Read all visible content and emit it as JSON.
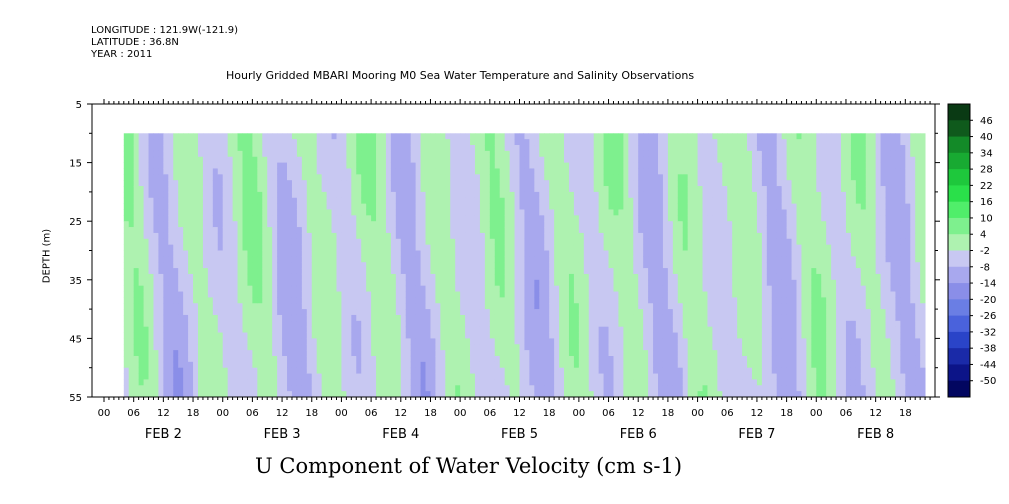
{
  "header": {
    "longitude": "LONGITUDE : 121.9W(-121.9)",
    "latitude": "LATITUDE : 36.8N",
    "year": "YEAR : 2011"
  },
  "chart_data": {
    "type": "heatmap",
    "title": "Hourly Gridded MBARI Mooring M0 Sea Water Temperature and Salinity Observations",
    "xlabel": "U Component of Water Velocity (cm s-1)",
    "ylabel": "DEPTH (m)",
    "y_ticks": [
      5,
      15,
      25,
      35,
      45,
      55
    ],
    "ylim": [
      55,
      5
    ],
    "depth_start": 10,
    "hour_ticks": [
      "00",
      "06",
      "12",
      "18",
      "00",
      "06",
      "12",
      "18",
      "00",
      "06",
      "12",
      "18",
      "00",
      "06",
      "12",
      "18",
      "00",
      "06",
      "12",
      "18",
      "00",
      "06",
      "12",
      "18",
      "00",
      "06",
      "12",
      "18"
    ],
    "day_labels": [
      "FEB  2",
      "FEB  3",
      "FEB  4",
      "FEB  5",
      "FEB  6",
      "FEB  7",
      "FEB  8"
    ],
    "colorbar_levels": [
      "46",
      "40",
      "34",
      "28",
      "22",
      "16",
      "10",
      "4",
      "-2",
      "-8",
      "-14",
      "-20",
      "-26",
      "-32",
      "-38",
      "-44",
      "-50"
    ],
    "colorbar_colors": [
      "#0a3a14",
      "#0f5a1c",
      "#138a28",
      "#18aa32",
      "#1ec83c",
      "#2ae04a",
      "#50ee6a",
      "#7ef08e",
      "#aef2b0",
      "#c8c8f2",
      "#a8a8ee",
      "#8a8ee8",
      "#6a7ee4",
      "#4a62dc",
      "#2a44c8",
      "#1a2aa8",
      "#0c1488",
      "#020660"
    ],
    "columns": [
      {
        "start": "FEB 2 04:00",
        "pattern": "green then blue"
      },
      {
        "note": "alternating tidal bands of eastward (green) and westward (blue) velocity"
      }
    ]
  }
}
